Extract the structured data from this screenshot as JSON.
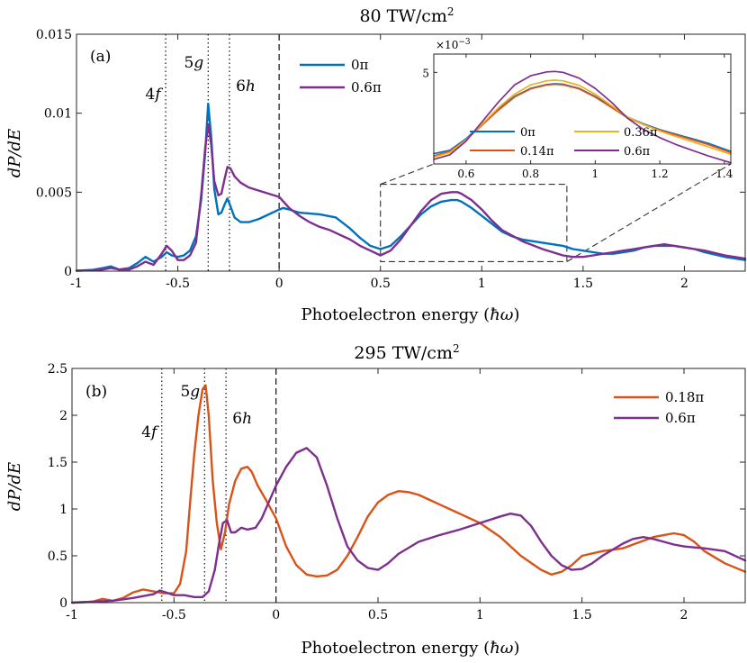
{
  "chart_data": [
    {
      "id": "panel_a",
      "type": "line",
      "panel_label": "(a)",
      "title_main": "80 TW/cm",
      "title_sup": "2",
      "xlabel_main": "Photoelectron energy (",
      "xlabel_sym": "ħω",
      "xlabel_close": ")",
      "ylabel": "dP/dE",
      "xlim": [
        -1,
        2.3
      ],
      "ylim": [
        0,
        0.015
      ],
      "xticks": [
        -1,
        -0.5,
        0,
        0.5,
        1,
        1.5,
        2
      ],
      "xtick_labels": [
        "-1",
        "-0.5",
        "0",
        "0.5",
        "1",
        "1.5",
        "2"
      ],
      "yticks": [
        0,
        0.005,
        0.01,
        0.015
      ],
      "ytick_labels": [
        "0",
        "0.005",
        "0.01",
        "0.015"
      ],
      "vlines": [
        {
          "x": -0.56,
          "style": "dotted",
          "label": "4f"
        },
        {
          "x": -0.35,
          "style": "dotted",
          "label": "5g"
        },
        {
          "x": -0.245,
          "style": "dotted",
          "label": "6h"
        },
        {
          "x": 0,
          "style": "dashed",
          "label": ""
        }
      ],
      "series": [
        {
          "name": "0π",
          "color": "#0072BD",
          "x": [
            -1,
            -0.92,
            -0.87,
            -0.83,
            -0.79,
            -0.74,
            -0.7,
            -0.66,
            -0.62,
            -0.58,
            -0.555,
            -0.53,
            -0.5,
            -0.47,
            -0.44,
            -0.41,
            -0.385,
            -0.365,
            -0.35,
            -0.335,
            -0.32,
            -0.3,
            -0.285,
            -0.27,
            -0.255,
            -0.24,
            -0.22,
            -0.19,
            -0.15,
            -0.1,
            -0.05,
            0,
            0.02,
            0.05,
            0.1,
            0.2,
            0.28,
            0.35,
            0.4,
            0.45,
            0.5,
            0.55,
            0.6,
            0.65,
            0.7,
            0.75,
            0.8,
            0.85,
            0.88,
            0.9,
            0.95,
            1.0,
            1.05,
            1.1,
            1.15,
            1.2,
            1.3,
            1.4,
            1.45,
            1.5,
            1.55,
            1.6,
            1.65,
            1.7,
            1.75,
            1.8,
            1.85,
            1.9,
            1.95,
            2.0,
            2.05,
            2.1,
            2.2,
            2.3
          ],
          "y": [
            3e-05,
            8e-05,
            0.0002,
            0.0003,
            0.0001,
            0.0002,
            0.0005,
            0.0009,
            0.0006,
            0.0009,
            0.0012,
            0.001,
            0.0009,
            0.001,
            0.0013,
            0.0022,
            0.0045,
            0.0075,
            0.0106,
            0.0085,
            0.0052,
            0.0036,
            0.0037,
            0.0042,
            0.0046,
            0.0041,
            0.0034,
            0.0031,
            0.0031,
            0.0033,
            0.0036,
            0.0039,
            0.004,
            0.0039,
            0.0037,
            0.0036,
            0.0034,
            0.0027,
            0.0021,
            0.0016,
            0.0014,
            0.0016,
            0.0022,
            0.0029,
            0.0036,
            0.0041,
            0.0044,
            0.0045,
            0.0045,
            0.0044,
            0.004,
            0.0035,
            0.003,
            0.0025,
            0.0022,
            0.002,
            0.0018,
            0.0016,
            0.0014,
            0.0013,
            0.0012,
            0.0011,
            0.0011,
            0.0012,
            0.0013,
            0.0015,
            0.0016,
            0.0016,
            0.0016,
            0.0015,
            0.0014,
            0.0012,
            0.0009,
            0.0007
          ]
        },
        {
          "name": "0.6π",
          "color": "#7E2F8E",
          "x": [
            -1,
            -0.92,
            -0.87,
            -0.83,
            -0.79,
            -0.74,
            -0.7,
            -0.66,
            -0.62,
            -0.58,
            -0.555,
            -0.53,
            -0.5,
            -0.47,
            -0.44,
            -0.41,
            -0.385,
            -0.365,
            -0.35,
            -0.335,
            -0.32,
            -0.3,
            -0.285,
            -0.27,
            -0.255,
            -0.24,
            -0.22,
            -0.19,
            -0.15,
            -0.1,
            -0.05,
            0,
            0.05,
            0.1,
            0.15,
            0.2,
            0.25,
            0.3,
            0.35,
            0.4,
            0.45,
            0.5,
            0.55,
            0.6,
            0.65,
            0.7,
            0.75,
            0.8,
            0.85,
            0.88,
            0.9,
            0.95,
            1.0,
            1.05,
            1.1,
            1.2,
            1.3,
            1.4,
            1.45,
            1.5,
            1.55,
            1.6,
            1.65,
            1.7,
            1.75,
            1.8,
            1.85,
            1.9,
            1.95,
            2.0,
            2.05,
            2.1,
            2.2,
            2.3
          ],
          "y": [
            2e-05,
            5e-05,
            0.0001,
            0.0002,
            0.0001,
            0.0001,
            0.0003,
            0.0006,
            0.0004,
            0.0011,
            0.0016,
            0.0013,
            0.0007,
            0.0007,
            0.001,
            0.0018,
            0.0048,
            0.0078,
            0.0093,
            0.008,
            0.0057,
            0.0048,
            0.0049,
            0.0058,
            0.0066,
            0.0065,
            0.006,
            0.0056,
            0.0053,
            0.0051,
            0.0049,
            0.0047,
            0.004,
            0.0035,
            0.0031,
            0.0028,
            0.0026,
            0.0023,
            0.002,
            0.0016,
            0.0013,
            0.001,
            0.0013,
            0.002,
            0.0029,
            0.0038,
            0.0045,
            0.0049,
            0.005,
            0.005,
            0.0049,
            0.0045,
            0.0039,
            0.0032,
            0.0026,
            0.0019,
            0.0014,
            0.001,
            0.0009,
            0.0009,
            0.001,
            0.0011,
            0.0012,
            0.0013,
            0.0014,
            0.0015,
            0.0016,
            0.0017,
            0.0016,
            0.0015,
            0.0014,
            0.0013,
            0.001,
            0.0008
          ]
        }
      ],
      "zoom_box": {
        "x_range": [
          0.5,
          1.42
        ],
        "y_range": [
          0.0006,
          0.0055
        ]
      },
      "inset": {
        "exponent_label": "×10",
        "exponent_sup": "−3",
        "xlim": [
          0.5,
          1.42
        ],
        "ylim": [
          1.0,
          5.8
        ],
        "xticks": [
          0.6,
          0.8,
          1.0,
          1.2,
          1.4
        ],
        "xtick_labels": [
          "0.6",
          "0.8",
          "1",
          "1.2",
          "1.4"
        ],
        "yticks": [
          5
        ],
        "ytick_labels": [
          "5"
        ],
        "series": [
          {
            "name": "0π",
            "color": "#0072BD",
            "x": [
              0.5,
              0.55,
              0.6,
              0.65,
              0.7,
              0.75,
              0.8,
              0.85,
              0.875,
              0.9,
              0.95,
              1.0,
              1.05,
              1.1,
              1.15,
              1.2,
              1.25,
              1.3,
              1.35,
              1.42
            ],
            "y": [
              1.45,
              1.6,
              2.1,
              2.75,
              3.4,
              3.95,
              4.3,
              4.47,
              4.5,
              4.48,
              4.3,
              3.95,
              3.5,
              3.05,
              2.75,
              2.5,
              2.3,
              2.1,
              1.9,
              1.55
            ]
          },
          {
            "name": "0.14π",
            "color": "#D95319",
            "x": [
              0.5,
              0.55,
              0.6,
              0.65,
              0.7,
              0.75,
              0.8,
              0.85,
              0.875,
              0.9,
              0.95,
              1.0,
              1.05,
              1.1,
              1.15,
              1.2,
              1.25,
              1.3,
              1.35,
              1.42
            ],
            "y": [
              1.35,
              1.55,
              2.05,
              2.7,
              3.35,
              3.92,
              4.28,
              4.45,
              4.48,
              4.46,
              4.28,
              3.92,
              3.47,
              3.02,
              2.72,
              2.47,
              2.27,
              2.06,
              1.85,
              1.5
            ]
          },
          {
            "name": "0.36π",
            "color": "#EDB120",
            "x": [
              0.5,
              0.55,
              0.6,
              0.65,
              0.7,
              0.75,
              0.8,
              0.85,
              0.875,
              0.9,
              0.95,
              1.0,
              1.05,
              1.1,
              1.15,
              1.2,
              1.25,
              1.3,
              1.35,
              1.42
            ],
            "y": [
              1.3,
              1.5,
              2.05,
              2.75,
              3.45,
              4.05,
              4.45,
              4.63,
              4.66,
              4.63,
              4.43,
              4.05,
              3.55,
              3.05,
              2.72,
              2.44,
              2.2,
              1.97,
              1.75,
              1.42
            ]
          },
          {
            "name": "0.6π",
            "color": "#7E2F8E",
            "x": [
              0.5,
              0.55,
              0.6,
              0.65,
              0.7,
              0.75,
              0.8,
              0.85,
              0.875,
              0.9,
              0.95,
              1.0,
              1.05,
              1.1,
              1.15,
              1.2,
              1.25,
              1.3,
              1.35,
              1.42
            ],
            "y": [
              1.2,
              1.4,
              2.0,
              2.85,
              3.7,
              4.45,
              4.85,
              5.02,
              5.04,
              5.0,
              4.75,
              4.3,
              3.7,
              3.0,
              2.5,
              2.15,
              1.85,
              1.6,
              1.35,
              1.05
            ]
          }
        ]
      }
    },
    {
      "id": "panel_b",
      "type": "line",
      "panel_label": "(b)",
      "title_main": "295 TW/cm",
      "title_sup": "2",
      "xlabel_main": "Photoelectron energy (",
      "xlabel_sym": "ħω",
      "xlabel_close": ")",
      "ylabel": "dP/dE",
      "xlim": [
        -1,
        2.3
      ],
      "ylim": [
        0,
        2.5
      ],
      "xticks": [
        -1,
        -0.5,
        0,
        0.5,
        1,
        1.5,
        2
      ],
      "xtick_labels": [
        "-1",
        "-0.5",
        "0",
        "0.5",
        "1",
        "1.5",
        "2"
      ],
      "yticks": [
        0,
        0.5,
        1,
        1.5,
        2,
        2.5
      ],
      "ytick_labels": [
        "0",
        "0.5",
        "1",
        "1.5",
        "2",
        "2.5"
      ],
      "vlines": [
        {
          "x": -0.56,
          "style": "dotted",
          "label": "4f"
        },
        {
          "x": -0.35,
          "style": "dotted",
          "label": "5g"
        },
        {
          "x": -0.245,
          "style": "dotted",
          "label": "6h"
        },
        {
          "x": 0,
          "style": "dashed",
          "label": ""
        }
      ],
      "series": [
        {
          "name": "0.18π",
          "color": "#D95319",
          "x": [
            -1,
            -0.9,
            -0.85,
            -0.8,
            -0.75,
            -0.7,
            -0.65,
            -0.6,
            -0.55,
            -0.5,
            -0.47,
            -0.44,
            -0.42,
            -0.4,
            -0.38,
            -0.36,
            -0.345,
            -0.33,
            -0.31,
            -0.29,
            -0.27,
            -0.25,
            -0.23,
            -0.2,
            -0.17,
            -0.14,
            -0.12,
            -0.09,
            -0.05,
            0,
            0.05,
            0.1,
            0.15,
            0.2,
            0.25,
            0.3,
            0.35,
            0.4,
            0.45,
            0.5,
            0.55,
            0.6,
            0.65,
            0.7,
            0.75,
            0.8,
            0.9,
            1.0,
            1.1,
            1.2,
            1.3,
            1.35,
            1.4,
            1.45,
            1.5,
            1.6,
            1.7,
            1.75,
            1.8,
            1.85,
            1.9,
            1.95,
            2.0,
            2.05,
            2.1,
            2.2,
            2.3
          ],
          "y": [
            0.0,
            0.01,
            0.04,
            0.02,
            0.05,
            0.11,
            0.14,
            0.12,
            0.1,
            0.1,
            0.2,
            0.55,
            1.1,
            1.6,
            2.0,
            2.28,
            2.32,
            2.0,
            1.3,
            0.85,
            0.57,
            0.75,
            1.05,
            1.3,
            1.43,
            1.45,
            1.4,
            1.25,
            1.1,
            0.9,
            0.6,
            0.4,
            0.3,
            0.28,
            0.29,
            0.35,
            0.5,
            0.7,
            0.92,
            1.07,
            1.15,
            1.19,
            1.18,
            1.15,
            1.1,
            1.05,
            0.95,
            0.85,
            0.7,
            0.5,
            0.35,
            0.3,
            0.33,
            0.4,
            0.5,
            0.55,
            0.58,
            0.62,
            0.66,
            0.7,
            0.72,
            0.74,
            0.72,
            0.65,
            0.55,
            0.42,
            0.33
          ]
        },
        {
          "name": "0.6π",
          "color": "#7E2F8E",
          "x": [
            -1,
            -0.9,
            -0.8,
            -0.7,
            -0.65,
            -0.6,
            -0.57,
            -0.54,
            -0.5,
            -0.45,
            -0.4,
            -0.36,
            -0.33,
            -0.3,
            -0.28,
            -0.26,
            -0.24,
            -0.22,
            -0.2,
            -0.17,
            -0.14,
            -0.1,
            -0.07,
            -0.04,
            0,
            0.05,
            0.1,
            0.15,
            0.2,
            0.25,
            0.3,
            0.35,
            0.4,
            0.45,
            0.5,
            0.55,
            0.6,
            0.7,
            0.8,
            0.9,
            1.0,
            1.1,
            1.15,
            1.2,
            1.25,
            1.3,
            1.35,
            1.4,
            1.45,
            1.5,
            1.55,
            1.6,
            1.7,
            1.75,
            1.8,
            1.85,
            1.9,
            1.95,
            2.0,
            2.1,
            2.2,
            2.3
          ],
          "y": [
            0.0,
            0.01,
            0.02,
            0.05,
            0.07,
            0.09,
            0.13,
            0.11,
            0.08,
            0.08,
            0.06,
            0.06,
            0.12,
            0.35,
            0.62,
            0.85,
            0.88,
            0.75,
            0.75,
            0.8,
            0.78,
            0.8,
            0.9,
            1.05,
            1.25,
            1.45,
            1.6,
            1.65,
            1.55,
            1.25,
            0.9,
            0.6,
            0.45,
            0.37,
            0.35,
            0.42,
            0.52,
            0.65,
            0.72,
            0.78,
            0.85,
            0.92,
            0.95,
            0.93,
            0.82,
            0.65,
            0.5,
            0.4,
            0.35,
            0.36,
            0.42,
            0.5,
            0.63,
            0.68,
            0.7,
            0.68,
            0.65,
            0.62,
            0.6,
            0.58,
            0.55,
            0.45
          ]
        }
      ]
    }
  ]
}
